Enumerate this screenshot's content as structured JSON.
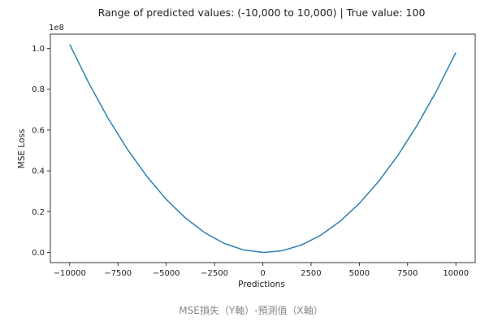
{
  "chart_data": {
    "type": "line",
    "title": "Range of predicted values: (-10,000 to 10,000) | True value: 100",
    "xlabel": "Predictions",
    "ylabel": "MSE Loss",
    "y_offset_label": "1e8",
    "xlim": [
      -11000,
      11000
    ],
    "ylim": [
      -0.05,
      1.07
    ],
    "x_ticks": [
      -10000,
      -7500,
      -5000,
      -2500,
      0,
      2500,
      5000,
      7500,
      10000
    ],
    "x_tick_labels": [
      "−10000",
      "−7500",
      "−5000",
      "−2500",
      "0",
      "2500",
      "5000",
      "7500",
      "10000"
    ],
    "y_ticks": [
      0.0,
      0.2,
      0.4,
      0.6,
      0.8,
      1.0
    ],
    "y_tick_labels": [
      "0.0",
      "0.2",
      "0.4",
      "0.6",
      "0.8",
      "1.0"
    ],
    "grid": false,
    "series": [
      {
        "color": "#2f7fb0",
        "x": [
          -10000,
          -9000,
          -8000,
          -7000,
          -6000,
          -5000,
          -4000,
          -3000,
          -2000,
          -1000,
          0,
          100,
          1000,
          2000,
          3000,
          4000,
          5000,
          6000,
          7000,
          8000,
          9000,
          10000
        ],
        "y": [
          1.0201,
          0.8281,
          0.6561,
          0.5041,
          0.3721,
          0.2601,
          0.1681,
          0.0961,
          0.0441,
          0.0121,
          0.0001,
          0.0,
          0.0081,
          0.0361,
          0.0841,
          0.1521,
          0.2401,
          0.3481,
          0.4761,
          0.6241,
          0.7921,
          0.9801
        ]
      }
    ]
  },
  "caption": "MSE損失（Y軸）-預測值（X軸）"
}
